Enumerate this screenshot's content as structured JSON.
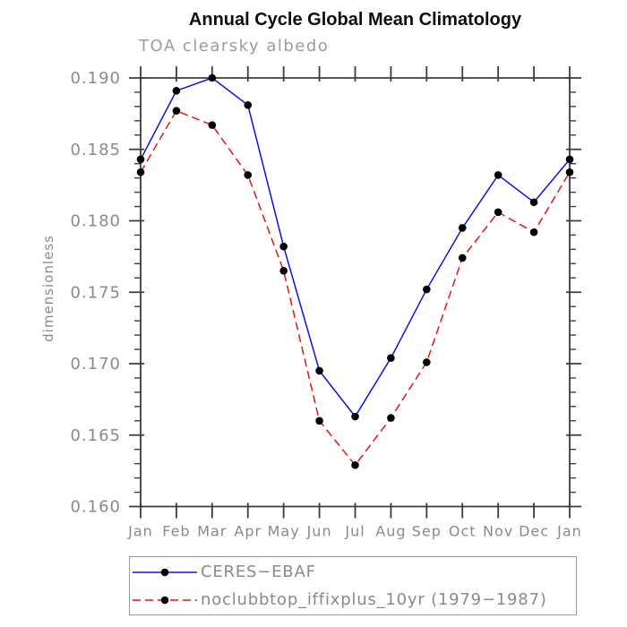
{
  "title": "Annual Cycle Global Mean Climatology",
  "subtitle": "TOA clearsky albedo",
  "colors": {
    "series1_blue": "#1010dd",
    "series2_red": "#e51212",
    "marker_black": "#000000",
    "axis": "#3c3c3c",
    "gray_text": "#8a8a8a",
    "legend_border": "#9a9a9a"
  },
  "chart_data": {
    "type": "line",
    "title": "Annual Cycle Global Mean Climatology",
    "subtitle": "TOA clearsky albedo",
    "xlabel": "",
    "ylabel": "dimensionless",
    "categories": [
      "Jan",
      "Feb",
      "Mar",
      "Apr",
      "May",
      "Jun",
      "Jul",
      "Aug",
      "Sep",
      "Oct",
      "Nov",
      "Dec",
      "Jan"
    ],
    "ylim": [
      0.16,
      0.19
    ],
    "ytick_major": 0.005,
    "ytick_minor": 0.001,
    "ytick_format_decimals": 3,
    "grid": false,
    "legend_position": "bottom",
    "series": [
      {
        "name": "CERES−EBAF",
        "color": "#1010dd",
        "style": "solid",
        "marker": "circle",
        "marker_color": "#000000",
        "values": [
          0.1843,
          0.1891,
          0.19,
          0.1881,
          0.1782,
          0.1695,
          0.1663,
          0.1704,
          0.1752,
          0.1795,
          0.1832,
          0.1813,
          0.1843
        ]
      },
      {
        "name": "noclubbtop_iffixplus_10yr (1979−1987)",
        "color": "#e51212",
        "style": "dashed",
        "marker": "circle",
        "marker_color": "#000000",
        "values": [
          0.1834,
          0.1877,
          0.1867,
          0.1832,
          0.1765,
          0.166,
          0.1629,
          0.1662,
          0.1701,
          0.1774,
          0.1806,
          0.1792,
          0.1834
        ]
      }
    ]
  }
}
